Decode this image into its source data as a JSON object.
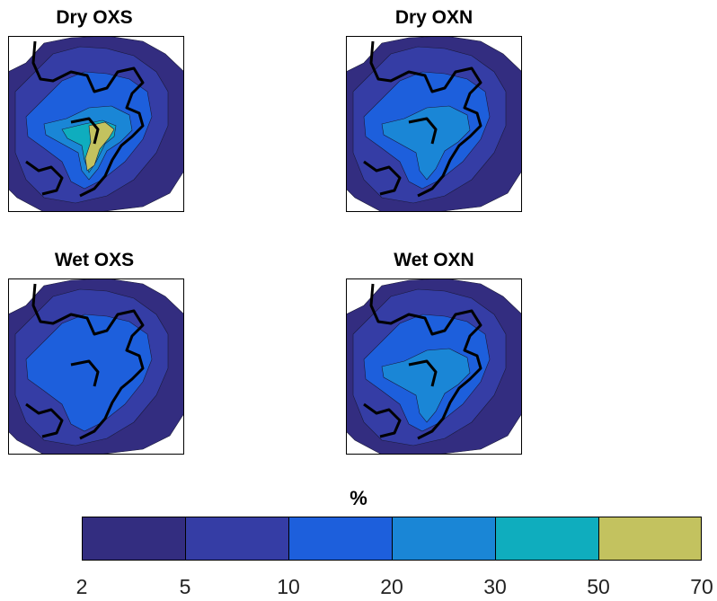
{
  "colors": {
    "levels": [
      "#332d80",
      "#353da5",
      "#1d5fdc",
      "#1a86d6",
      "#0fadbe",
      "#c3c25f"
    ],
    "land_outline": "#000000"
  },
  "chart_data": [
    {
      "type": "heatmap",
      "title": "Dry OXS",
      "max_level_index": 5
    },
    {
      "type": "heatmap",
      "title": "Dry OXN",
      "max_level_index": 3
    },
    {
      "type": "heatmap",
      "title": "Wet OXS",
      "max_level_index": 2
    },
    {
      "type": "heatmap",
      "title": "Wet OXN",
      "max_level_index": 3
    }
  ],
  "colorbar": {
    "label": "%",
    "ticks": [
      "2",
      "5",
      "10",
      "20",
      "30",
      "50",
      "70"
    ]
  }
}
